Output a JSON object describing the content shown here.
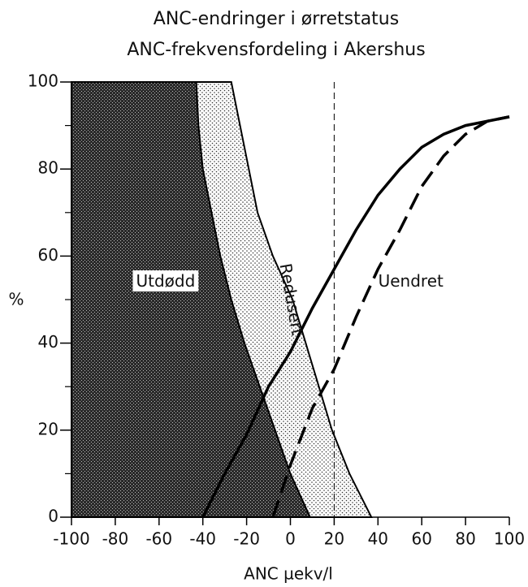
{
  "chart_data": {
    "type": "area",
    "title": [
      "ANC-endringer i ørretstatus",
      "ANC-frekvensfordeling i Akershus"
    ],
    "xlabel": "ANC µekv/l",
    "ylabel": "%",
    "xlim": [
      -100,
      100
    ],
    "ylim": [
      0,
      100
    ],
    "xticks": [
      -100,
      -80,
      -60,
      -40,
      -20,
      0,
      20,
      40,
      60,
      80,
      100
    ],
    "yticks": [
      0,
      20,
      40,
      60,
      80,
      100
    ],
    "yticks_minor": [
      10,
      30,
      50,
      70,
      90
    ],
    "series": [
      {
        "style": "dotted-fill",
        "x": [
          -27,
          -23,
          -19,
          -15,
          -8,
          1,
          7,
          13,
          19,
          27,
          37
        ],
        "values": [
          100,
          90,
          80,
          70,
          60,
          50,
          40,
          30,
          20,
          10,
          0
        ]
      },
      {
        "style": "dark-fill",
        "x": [
          -43,
          -42,
          -40,
          -36,
          -32,
          -27,
          -21,
          -14,
          -7,
          0,
          9
        ],
        "values": [
          100,
          90,
          80,
          70,
          60,
          50,
          40,
          30,
          20,
          10,
          0
        ]
      },
      {
        "style": "solid",
        "x": [
          -40,
          -30,
          -20,
          -10,
          0,
          10,
          20,
          30,
          40,
          50,
          60,
          70,
          80,
          90,
          100
        ],
        "values": [
          0,
          10,
          19,
          30,
          38,
          48,
          57,
          66,
          74,
          80,
          85,
          88,
          90,
          91,
          92
        ]
      },
      {
        "style": "dashed",
        "x": [
          -8,
          0,
          10,
          20,
          30,
          40,
          50,
          60,
          70,
          80,
          90,
          100
        ],
        "values": [
          0,
          12,
          25,
          34,
          46,
          57,
          66,
          76,
          83,
          88,
          91,
          92
        ]
      }
    ],
    "reference_lines": [
      {
        "x": 20
      }
    ],
    "annotations": [
      {
        "text": "Utdødd",
        "x": -57,
        "y": 54,
        "boxed": true
      },
      {
        "text": "Redusert",
        "x": 0,
        "y": 50,
        "rotate": 80
      },
      {
        "text": "Uendret",
        "x": 55,
        "y": 54
      }
    ]
  }
}
